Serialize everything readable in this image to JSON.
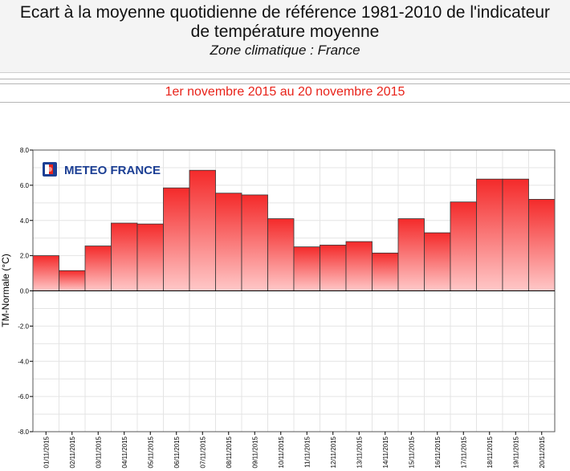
{
  "header": {
    "title_line1": "Ecart à la moyenne quotidienne de référence 1981-2010 de l'indicateur",
    "title_line2": "de température moyenne",
    "subtitle": "Zone climatique : France"
  },
  "period": "1er novembre 2015 au 20 novembre 2015",
  "logo": {
    "text": "METEO FRANCE",
    "icon": "meteo-france-logo-icon"
  },
  "colors": {
    "bar_top": "#f42a2a",
    "bar_bottom": "#ffc8c8",
    "period_text": "#e8231a",
    "logo_text": "#1c3f94"
  },
  "chart_data": {
    "type": "bar",
    "ylabel": "TM-Normale (°C)",
    "ylim": [
      -8.0,
      8.0
    ],
    "yticks": [
      "8.0",
      "6.0",
      "4.0",
      "2.0",
      "0.0",
      "-2.0",
      "-4.0",
      "-6.0",
      "-8.0"
    ],
    "grid": true,
    "categories": [
      "01/11/2015",
      "02/11/2015",
      "03/11/2015",
      "04/11/2015",
      "05/11/2015",
      "06/11/2015",
      "07/11/2015",
      "08/11/2015",
      "09/11/2015",
      "10/11/2015",
      "11/11/2015",
      "12/11/2015",
      "13/11/2015",
      "14/11/2015",
      "15/11/2015",
      "16/11/2015",
      "17/11/2015",
      "18/11/2015",
      "19/11/2015",
      "20/11/2015"
    ],
    "values": [
      2.0,
      1.15,
      2.55,
      3.85,
      3.8,
      5.85,
      6.85,
      5.55,
      5.45,
      4.1,
      2.5,
      2.6,
      2.8,
      2.15,
      4.1,
      3.3,
      5.05,
      6.35,
      6.35,
      5.2
    ]
  }
}
